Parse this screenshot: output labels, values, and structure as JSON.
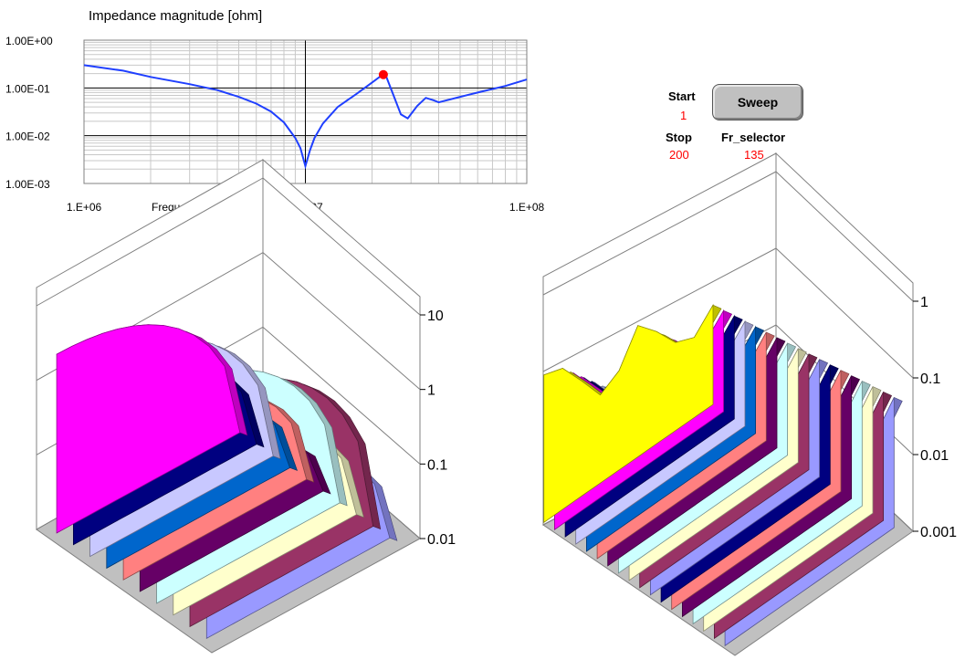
{
  "top_chart_title": "Impedance magnitude [ohm]",
  "controls": {
    "start_label": "Start",
    "start_value": "1",
    "stop_label": "Stop",
    "stop_value": "200",
    "fr_selector_label": "Fr_selector",
    "fr_selector_value": "135",
    "sweep_label": "Sweep"
  },
  "chart_data": [
    {
      "type": "line",
      "title": "Impedance magnitude [ohm]",
      "xlabel": "Frequency [Hz]",
      "ylabel": "",
      "x_scale": "log",
      "y_scale": "log",
      "xlim": [
        1000000,
        100000000
      ],
      "ylim": [
        0.001,
        1
      ],
      "x_tick_labels": [
        "1.E+06",
        "1.E+07",
        "1.E+08"
      ],
      "y_tick_labels": [
        "1.00E+00",
        "1.00E-01",
        "1.00E-02",
        "1.00E-03"
      ],
      "grid": true,
      "series_color": "#1f3fff",
      "marker_color": "#ff0000",
      "x": [
        1000000,
        1500000,
        2000000,
        3000000,
        4000000,
        5000000,
        6000000,
        7000000,
        8000000,
        9000000,
        9500000,
        10000000,
        10500000,
        11000000,
        12000000,
        14000000,
        17000000,
        20000000,
        22000000,
        23000000,
        25000000,
        27000000,
        29000000,
        32000000,
        35000000,
        38000000,
        40000000,
        42000000,
        50000000,
        60000000,
        80000000,
        100000000
      ],
      "y": [
        0.3,
        0.23,
        0.17,
        0.12,
        0.09,
        0.065,
        0.047,
        0.032,
        0.019,
        0.009,
        0.0055,
        0.0023,
        0.005,
        0.009,
        0.018,
        0.04,
        0.075,
        0.13,
        0.18,
        0.19,
        0.07,
        0.028,
        0.023,
        0.042,
        0.062,
        0.055,
        0.05,
        0.053,
        0.065,
        0.08,
        0.11,
        0.15
      ],
      "marker": {
        "x": 22500000,
        "y": 0.19
      }
    },
    {
      "type": "area3d",
      "z_scale": "log",
      "z_tick_labels": [
        "10",
        "1",
        "0.1",
        "0.01"
      ],
      "zlim": [
        0.01,
        10
      ],
      "series_colors": [
        "#ff00ff",
        "#000080",
        "#c8c8ff",
        "#0066cc",
        "#ff8080",
        "#660066",
        "#ccffff",
        "#ffffcc",
        "#993366",
        "#9999ff"
      ],
      "series_peaks": [
        2.5,
        0.9,
        3.5,
        0.45,
        1.2,
        0.3,
        6,
        1.2,
        10,
        1.0
      ],
      "series_lows": [
        0.01,
        0.01,
        0.01,
        0.01,
        0.01,
        0.01,
        0.01,
        0.01,
        0.01,
        0.01
      ]
    },
    {
      "type": "area3d",
      "z_scale": "log",
      "z_tick_labels": [
        "1",
        "0.1",
        "0.01",
        "0.001"
      ],
      "zlim": [
        0.001,
        1
      ],
      "series_colors": [
        "#ffff00",
        "#ff00ff",
        "#000080",
        "#c8c8ff",
        "#0066cc",
        "#ff8080",
        "#660066",
        "#ccffff",
        "#ffffcc",
        "#993366",
        "#9999ff",
        "#000080",
        "#ff8080",
        "#660066",
        "#ccffff",
        "#ffffcc",
        "#993366",
        "#9999ff"
      ],
      "profile_rel": [
        0.92,
        0.88,
        0.72,
        0.55,
        0.62,
        0.82,
        0.7,
        0.55,
        0.5,
        0.62
      ]
    }
  ]
}
